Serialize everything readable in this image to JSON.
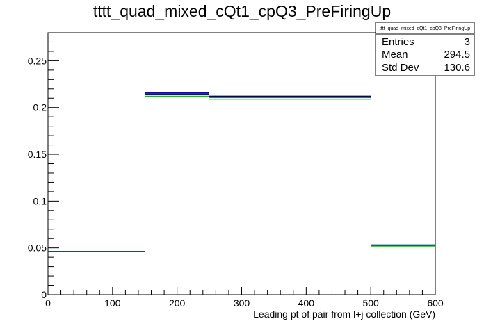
{
  "chart_data": {
    "type": "histogram",
    "title": "tttt_quad_mixed_cQt1_cpQ3_PreFiringUp",
    "xlabel": "Leading pt of pair from l+j collection (GeV)",
    "ylabel": "",
    "xlim": [
      0,
      600
    ],
    "ylim": [
      0,
      0.28
    ],
    "x_ticks": [
      "0",
      "100",
      "200",
      "300",
      "400",
      "500",
      "600"
    ],
    "y_ticks": [
      "0",
      "0.05",
      "0.1",
      "0.15",
      "0.2",
      "0.25"
    ],
    "bins": [
      [
        0,
        150
      ],
      [
        150,
        250
      ],
      [
        250,
        500
      ],
      [
        500,
        600
      ]
    ],
    "series": [
      {
        "color": "#000000",
        "values": [
          0.046,
          0.214,
          0.211,
          0.053
        ]
      },
      {
        "color": "#1a1aff",
        "values": [
          0.046,
          0.215,
          0.212,
          0.053
        ]
      },
      {
        "color": "#00cc00",
        "values": [
          0.046,
          0.212,
          0.209,
          0.052
        ]
      },
      {
        "color": "#000080",
        "values": [
          0.046,
          0.216,
          0.212,
          0.053
        ]
      }
    ],
    "stats": {
      "name": "tttt_quad_mixed_cQt1_cpQ3_PreFiringUp",
      "rows": [
        {
          "label": "Entries",
          "value": "3"
        },
        {
          "label": "Mean",
          "value": "294.5"
        },
        {
          "label": "Std Dev",
          "value": "130.6"
        }
      ]
    }
  }
}
